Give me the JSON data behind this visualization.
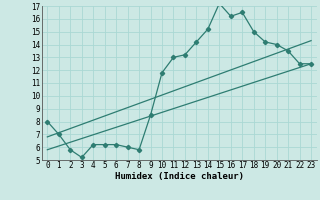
{
  "xlabel": "Humidex (Indice chaleur)",
  "bg_color": "#cce8e4",
  "grid_color": "#aad8d4",
  "line_color": "#2e7d72",
  "xlim": [
    -0.5,
    23.5
  ],
  "ylim": [
    5,
    17
  ],
  "xticks": [
    0,
    1,
    2,
    3,
    4,
    5,
    6,
    7,
    8,
    9,
    10,
    11,
    12,
    13,
    14,
    15,
    16,
    17,
    18,
    19,
    20,
    21,
    22,
    23
  ],
  "yticks": [
    5,
    6,
    7,
    8,
    9,
    10,
    11,
    12,
    13,
    14,
    15,
    16,
    17
  ],
  "line1_x": [
    0,
    1,
    2,
    3,
    4,
    5,
    6,
    7,
    8,
    9,
    10,
    11,
    12,
    13,
    14,
    15,
    16,
    17,
    18,
    19,
    20,
    21,
    22,
    23
  ],
  "line1_y": [
    8.0,
    7.0,
    5.8,
    5.2,
    6.2,
    6.2,
    6.2,
    6.0,
    5.8,
    8.5,
    11.8,
    13.0,
    13.2,
    14.2,
    15.2,
    17.2,
    16.2,
    16.5,
    15.0,
    14.2,
    14.0,
    13.5,
    12.5,
    12.5
  ],
  "line2_x": [
    0,
    23
  ],
  "line2_y": [
    5.8,
    12.5
  ],
  "line3_x": [
    0,
    23
  ],
  "line3_y": [
    6.8,
    14.3
  ],
  "xlabel_fontsize": 6.5,
  "tick_fontsize": 5.5
}
